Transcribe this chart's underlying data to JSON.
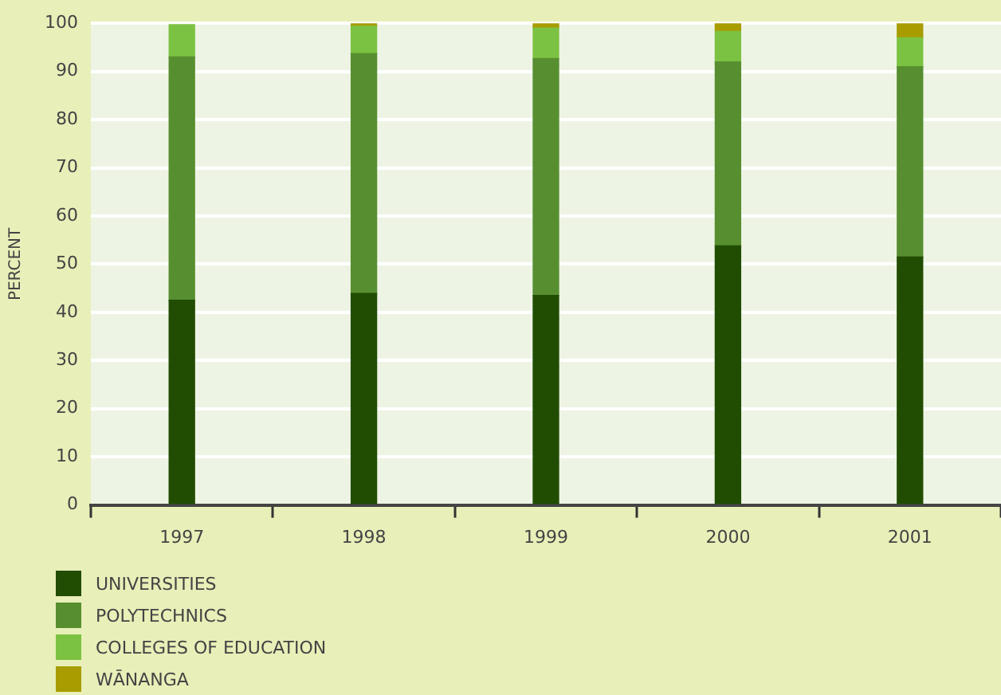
{
  "chart_data": {
    "type": "bar",
    "stacked": true,
    "ylabel": "PERCENT",
    "categories": [
      "1997",
      "1998",
      "1999",
      "2000",
      "2001"
    ],
    "series": [
      {
        "name": "UNIVERSITIES",
        "color": "#214d02",
        "values": [
          42.5,
          43.9,
          43.5,
          53.8,
          51.5
        ]
      },
      {
        "name": "POLYTECHNICS",
        "color": "#578f30",
        "values": [
          50.5,
          49.8,
          49.2,
          38.2,
          39.5
        ]
      },
      {
        "name": "COLLEGES OF EDUCATION",
        "color": "#7cc242",
        "values": [
          6.7,
          5.7,
          6.3,
          6.3,
          6.0
        ]
      },
      {
        "name": "WĀNANGA",
        "color": "#a89c00",
        "values": [
          null,
          0.6,
          1.0,
          1.7,
          3.0
        ]
      }
    ],
    "ylim": [
      0,
      100
    ],
    "yticks": [
      0,
      10,
      20,
      30,
      40,
      50,
      60,
      70,
      80,
      90,
      100
    ],
    "grid": "y",
    "legend": "bottom"
  }
}
